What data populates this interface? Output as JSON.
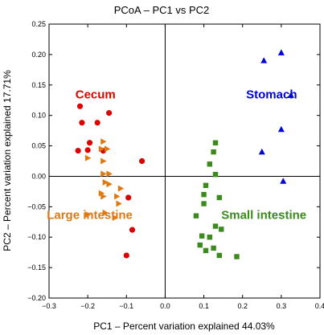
{
  "chart_data": {
    "type": "scatter",
    "title": "PCoA – PC1 vs PC2",
    "xlabel": "PC1 – Percent variation explained 44.03%",
    "ylabel": "PC2 – Percent variation explained 17.71%",
    "xlim": [
      -0.3,
      0.4
    ],
    "ylim": [
      -0.2,
      0.25
    ],
    "xticks": [
      -0.3,
      -0.2,
      -0.1,
      0.0,
      0.1,
      0.2,
      0.3,
      0.4
    ],
    "yticks": [
      -0.2,
      -0.15,
      -0.1,
      -0.05,
      0.0,
      0.05,
      0.1,
      0.15,
      0.2,
      0.25
    ],
    "xtick_labels": [
      "−0.3",
      "−0.2",
      "−0.1",
      "0.0",
      "0.1",
      "0.2",
      "0.3",
      "0.4"
    ],
    "ytick_labels": [
      "−0.20",
      "−0.15",
      "−0.10",
      "−0.05",
      "0.00",
      "0.05",
      "0.10",
      "0.15",
      "0.20",
      "0.25"
    ],
    "grid": false,
    "reference_lines": [
      {
        "axis": "x",
        "value": 0
      },
      {
        "axis": "y",
        "value": 0
      }
    ],
    "series": [
      {
        "name": "Cecum",
        "marker": "circle",
        "color": "#dd0000",
        "points": [
          [
            -0.22,
            0.115
          ],
          [
            -0.215,
            0.088
          ],
          [
            -0.175,
            0.088
          ],
          [
            -0.145,
            0.104
          ],
          [
            -0.195,
            0.055
          ],
          [
            -0.2,
            0.043
          ],
          [
            -0.225,
            0.042
          ],
          [
            -0.16,
            0.042
          ],
          [
            -0.06,
            0.025
          ],
          [
            -0.095,
            -0.035
          ],
          [
            -0.085,
            -0.088
          ],
          [
            -0.1,
            -0.13
          ]
        ]
      },
      {
        "name": "Large intestine",
        "marker": "triangle-right",
        "color": "#e07a10",
        "points": [
          [
            -0.16,
            0.057
          ],
          [
            -0.165,
            0.045
          ],
          [
            -0.15,
            0.045
          ],
          [
            -0.2,
            0.03
          ],
          [
            -0.16,
            0.025
          ],
          [
            -0.16,
            0.004
          ],
          [
            -0.145,
            0.004
          ],
          [
            -0.155,
            -0.01
          ],
          [
            -0.145,
            -0.013
          ],
          [
            -0.115,
            -0.02
          ],
          [
            -0.165,
            -0.028
          ],
          [
            -0.16,
            -0.033
          ],
          [
            -0.125,
            -0.033
          ],
          [
            -0.12,
            -0.045
          ],
          [
            -0.155,
            -0.06
          ],
          [
            -0.13,
            -0.068
          ],
          [
            -0.2,
            -0.063
          ]
        ]
      },
      {
        "name": "Small intestine",
        "marker": "square",
        "color": "#3a8a1c",
        "points": [
          [
            0.13,
            0.055
          ],
          [
            0.125,
            0.04
          ],
          [
            0.115,
            0.02
          ],
          [
            0.13,
            0.003
          ],
          [
            0.105,
            -0.015
          ],
          [
            0.1,
            -0.03
          ],
          [
            0.14,
            -0.035
          ],
          [
            0.1,
            -0.045
          ],
          [
            0.08,
            -0.065
          ],
          [
            0.13,
            -0.082
          ],
          [
            0.145,
            -0.087
          ],
          [
            0.115,
            -0.1
          ],
          [
            0.095,
            -0.098
          ],
          [
            0.125,
            -0.118
          ],
          [
            0.105,
            -0.122
          ],
          [
            0.09,
            -0.113
          ],
          [
            0.14,
            -0.13
          ],
          [
            0.185,
            -0.132
          ]
        ]
      },
      {
        "name": "Stomach",
        "marker": "triangle-up",
        "color": "#0000dd",
        "points": [
          [
            0.3,
            0.203
          ],
          [
            0.255,
            0.19
          ],
          [
            0.325,
            0.133
          ],
          [
            0.3,
            0.077
          ],
          [
            0.25,
            0.04
          ],
          [
            0.305,
            -0.008
          ]
        ]
      }
    ],
    "annotations": [
      {
        "text": "Cecum",
        "x": -0.18,
        "y": 0.128,
        "color": "#dd0000"
      },
      {
        "text": "Large intestine",
        "x": -0.195,
        "y": -0.07,
        "color": "#e07a10"
      },
      {
        "text": "Small intestine",
        "x": 0.255,
        "y": -0.07,
        "color": "#3a8a1c"
      },
      {
        "text": "Stomach",
        "x": 0.275,
        "y": 0.128,
        "color": "#0000dd"
      }
    ]
  }
}
